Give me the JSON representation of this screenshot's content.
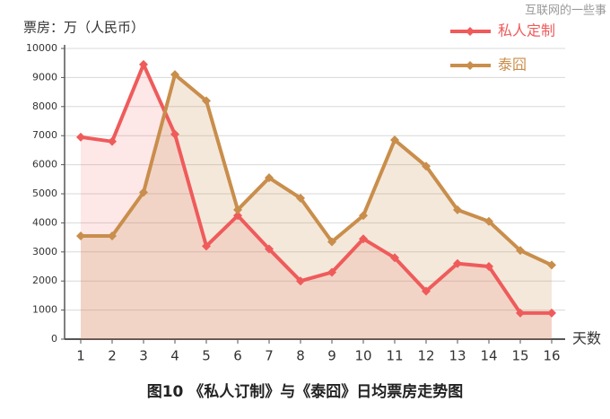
{
  "chart_data": {
    "type": "line",
    "title": "图10 《私人订制》与《泰囧》日均票房走势图",
    "y_label": "票房：万（人民币）",
    "x_label": "天数",
    "watermark": "互联网的一些事",
    "categories": [
      "1",
      "2",
      "3",
      "4",
      "5",
      "6",
      "7",
      "8",
      "9",
      "10",
      "11",
      "12",
      "13",
      "14",
      "15",
      "16"
    ],
    "series": [
      {
        "name": "私人定制",
        "color": "#ef5b5b",
        "values": [
          6950,
          6800,
          9450,
          7050,
          3200,
          4250,
          3100,
          2000,
          2300,
          3450,
          2800,
          1650,
          2600,
          2500,
          900,
          900
        ]
      },
      {
        "name": "泰囧",
        "color": "#c98e4c",
        "values": [
          3550,
          3550,
          5050,
          9100,
          8200,
          4450,
          5550,
          4850,
          3350,
          4250,
          6850,
          5950,
          4450,
          4050,
          3050,
          2550
        ]
      }
    ],
    "ylim": [
      0,
      10000
    ],
    "yticks": [
      0,
      1000,
      2000,
      3000,
      4000,
      5000,
      6000,
      7000,
      8000,
      9000,
      10000
    ],
    "grid": true,
    "legend": "upper right"
  }
}
